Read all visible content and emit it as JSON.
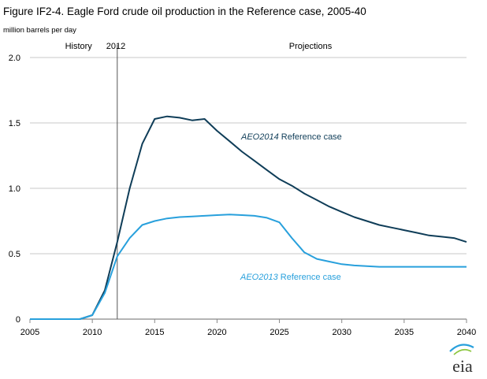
{
  "title": "Figure IF2-4. Eagle Ford crude oil production in the Reference case, 2005-40",
  "unit_label": "million barrels per day",
  "colors": {
    "aeo2014": "#0f3d58",
    "aeo2013": "#28a0dc",
    "grid": "#c8c8c8",
    "divider": "#555555",
    "axis": "#888888"
  },
  "logo": {
    "text": "eia"
  },
  "chart_data": {
    "type": "line",
    "xlim": [
      2005,
      2040
    ],
    "ylim": [
      0,
      2.0
    ],
    "x_ticks": [
      2005,
      2010,
      2015,
      2020,
      2025,
      2030,
      2035,
      2040
    ],
    "x_tick_labels": [
      "2005",
      "2010",
      "2015",
      "2020",
      "2025",
      "2030",
      "2035",
      "2040"
    ],
    "y_ticks": [
      0,
      0.5,
      1.0,
      1.5,
      2.0
    ],
    "y_tick_labels": [
      "0",
      "0.5",
      "1.0",
      "1.5",
      "2.0"
    ],
    "grid": "horizontal",
    "divider_year": 2012,
    "annotations": {
      "history": "History",
      "divider_year": "2012",
      "projections": "Projections"
    },
    "series": [
      {
        "name": "AEO2014 Reference case",
        "name_italic": "AEO2014",
        "name_rest": " Reference case",
        "color": "#0f3d58",
        "x": [
          2005,
          2006,
          2007,
          2008,
          2009,
          2010,
          2011,
          2012,
          2013,
          2014,
          2015,
          2016,
          2017,
          2018,
          2019,
          2020,
          2021,
          2022,
          2023,
          2024,
          2025,
          2026,
          2027,
          2028,
          2029,
          2030,
          2031,
          2032,
          2033,
          2034,
          2035,
          2036,
          2037,
          2038,
          2039,
          2040
        ],
        "values": [
          0,
          0,
          0,
          0,
          0,
          0.03,
          0.22,
          0.59,
          1.0,
          1.34,
          1.53,
          1.55,
          1.54,
          1.52,
          1.53,
          1.44,
          1.36,
          1.28,
          1.21,
          1.14,
          1.07,
          1.02,
          0.96,
          0.91,
          0.86,
          0.82,
          0.78,
          0.75,
          0.72,
          0.7,
          0.68,
          0.66,
          0.64,
          0.63,
          0.62,
          0.59
        ]
      },
      {
        "name": "AEO2013 Reference case",
        "name_italic": "AEO2013",
        "name_rest": " Reference case",
        "color": "#28a0dc",
        "x": [
          2005,
          2006,
          2007,
          2008,
          2009,
          2010,
          2011,
          2012,
          2013,
          2014,
          2015,
          2016,
          2017,
          2018,
          2019,
          2020,
          2021,
          2022,
          2023,
          2024,
          2025,
          2026,
          2027,
          2028,
          2029,
          2030,
          2031,
          2032,
          2033,
          2034,
          2035,
          2036,
          2037,
          2038,
          2039,
          2040
        ],
        "values": [
          0,
          0,
          0,
          0,
          0,
          0.03,
          0.2,
          0.48,
          0.62,
          0.72,
          0.75,
          0.77,
          0.78,
          0.785,
          0.79,
          0.795,
          0.8,
          0.795,
          0.79,
          0.775,
          0.74,
          0.62,
          0.51,
          0.46,
          0.44,
          0.42,
          0.41,
          0.405,
          0.4,
          0.4,
          0.4,
          0.4,
          0.4,
          0.4,
          0.4,
          0.4
        ]
      }
    ]
  }
}
